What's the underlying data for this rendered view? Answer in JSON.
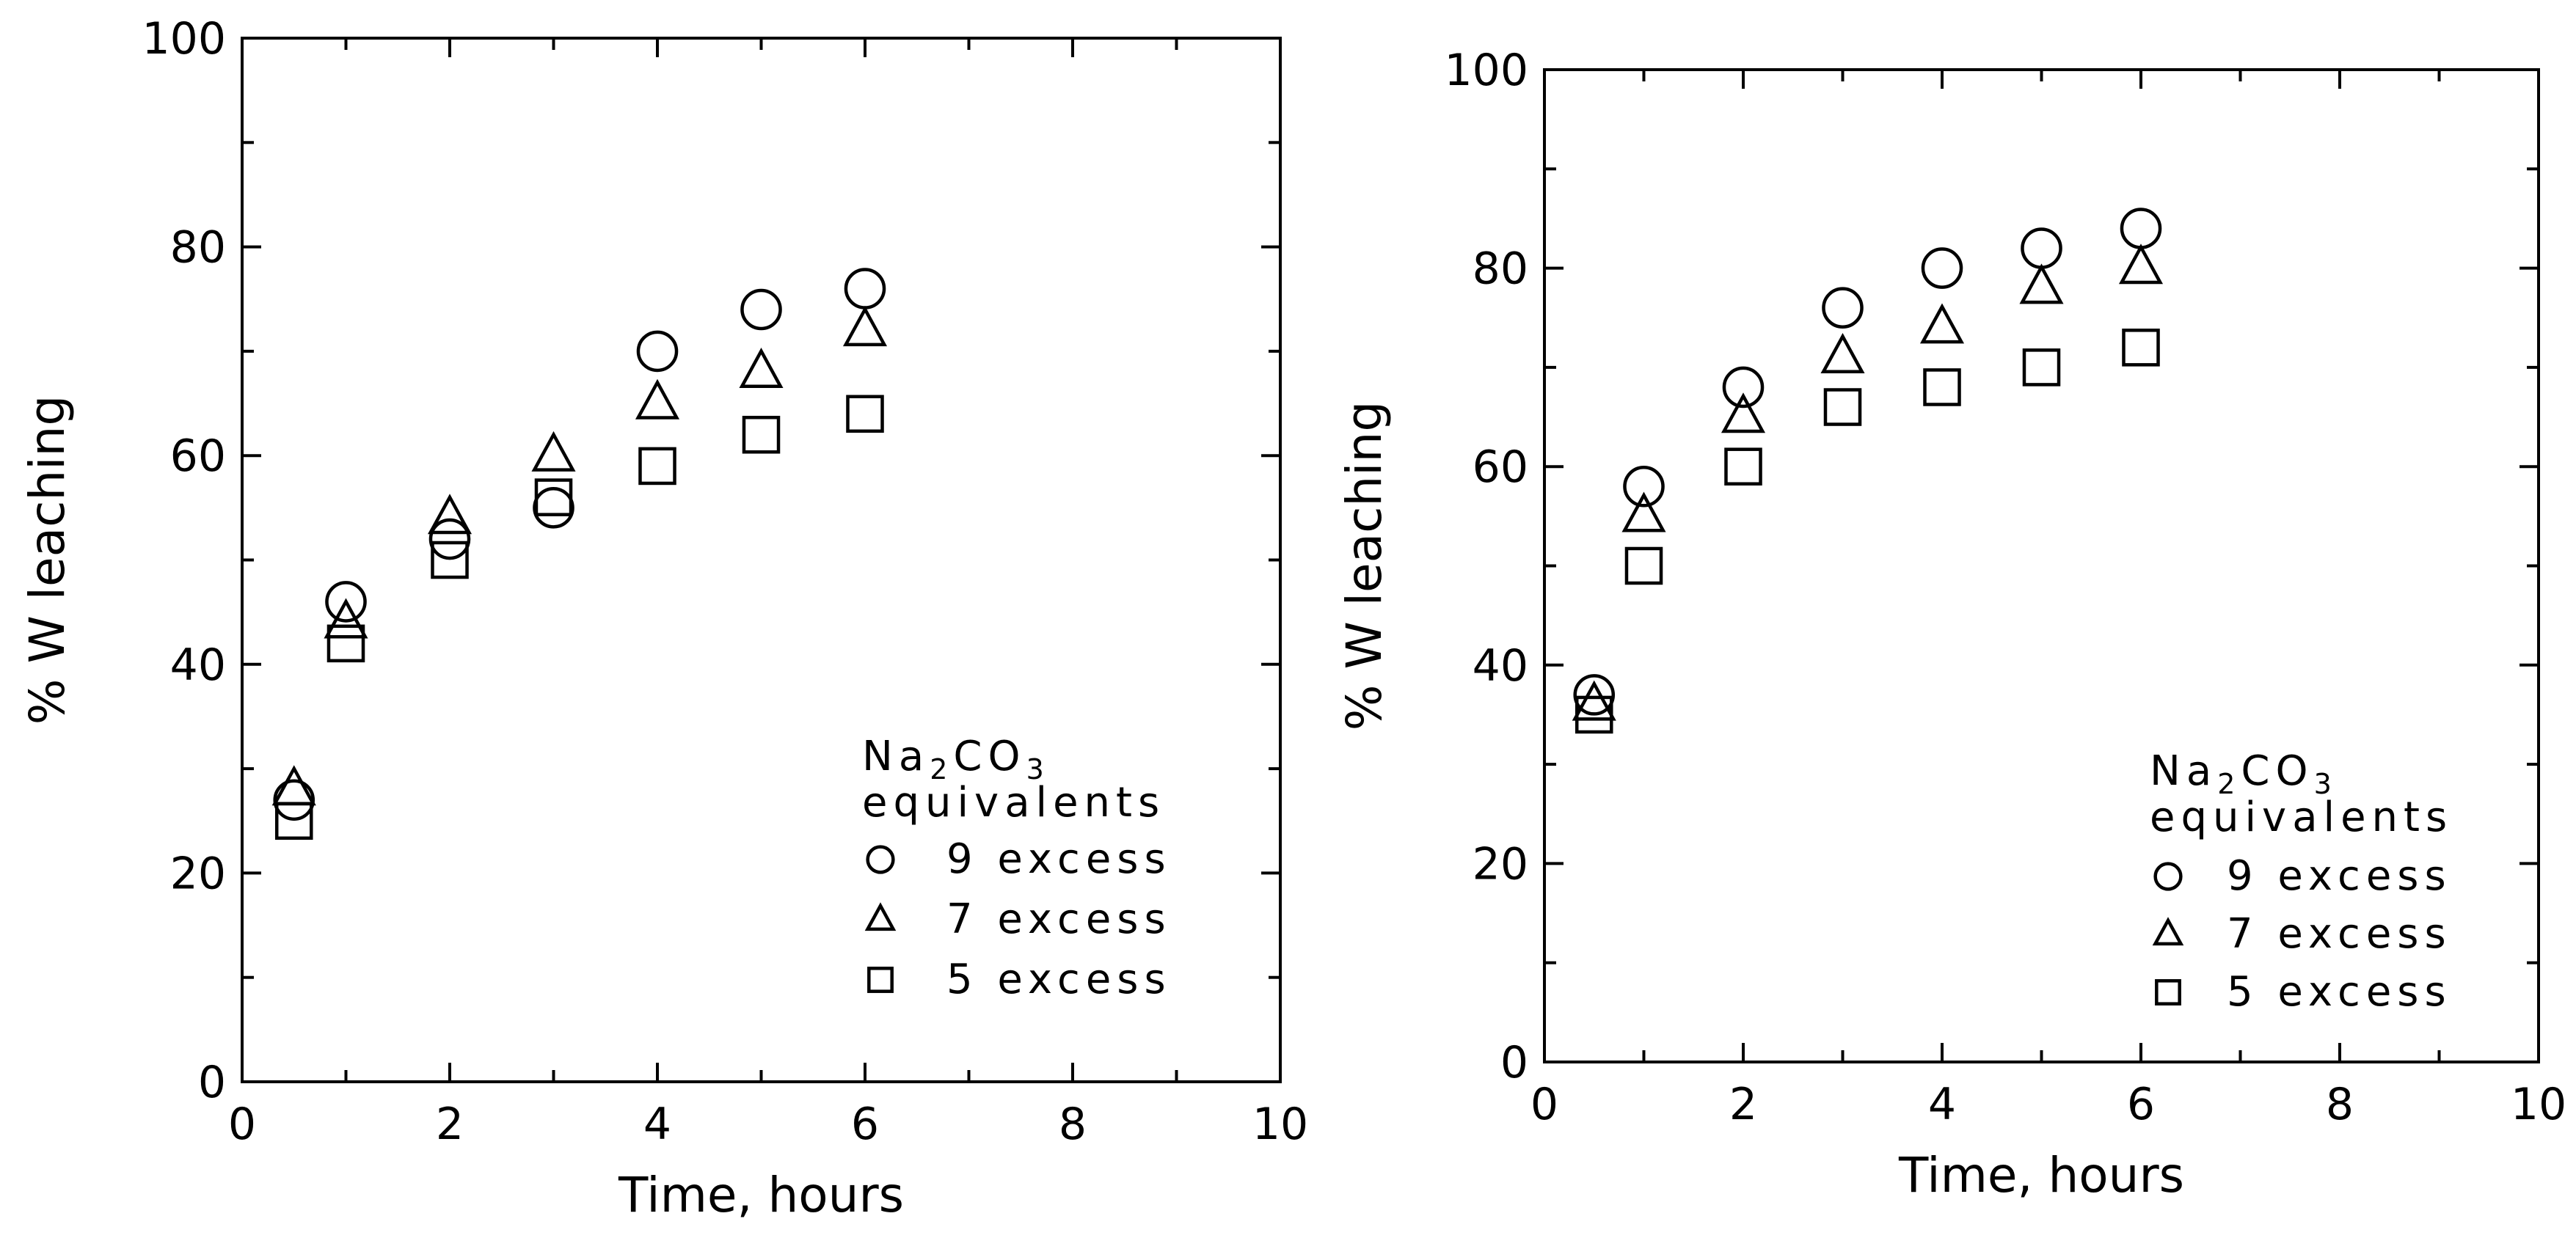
{
  "chart_data": [
    {
      "type": "scatter",
      "xlabel": "Time, hours",
      "ylabel": "% W leaching",
      "xlim": [
        0,
        10
      ],
      "ylim": [
        0,
        100
      ],
      "xticks": [
        "0",
        "2",
        "4",
        "6",
        "8",
        "10"
      ],
      "yticks": [
        "0",
        "20",
        "40",
        "60",
        "80",
        "100"
      ],
      "grid": false,
      "legend_position": "bottom-right",
      "legend_title_main": "Na",
      "legend_title_sub1": "2",
      "legend_title_mid": "CO",
      "legend_title_sub2": "3",
      "legend_title_line2": "equivalents",
      "series": [
        {
          "name": "9 excess",
          "marker": "circle",
          "x": [
            0.5,
            1,
            2,
            3,
            4,
            5,
            6
          ],
          "y": [
            27,
            46,
            52,
            55,
            70,
            74,
            76
          ]
        },
        {
          "name": "7 excess",
          "marker": "triangle",
          "x": [
            0.5,
            1,
            2,
            3,
            4,
            5,
            6
          ],
          "y": [
            28,
            44,
            54,
            60,
            65,
            68,
            72
          ]
        },
        {
          "name": "5 excess",
          "marker": "square",
          "x": [
            0.5,
            1,
            2,
            3,
            4,
            5,
            6
          ],
          "y": [
            25,
            42,
            50,
            56,
            59,
            62,
            64
          ]
        }
      ]
    },
    {
      "type": "scatter",
      "xlabel": "Time, hours",
      "ylabel": "% W leaching",
      "xlim": [
        0,
        10
      ],
      "ylim": [
        0,
        100
      ],
      "xticks": [
        "0",
        "2",
        "4",
        "6",
        "8",
        "10"
      ],
      "yticks": [
        "0",
        "20",
        "40",
        "60",
        "80",
        "100"
      ],
      "grid": false,
      "legend_position": "bottom-right",
      "legend_title_main": "Na",
      "legend_title_sub1": "2",
      "legend_title_mid": "CO",
      "legend_title_sub2": "3",
      "legend_title_line2": "equivalents",
      "series": [
        {
          "name": "9 excess",
          "marker": "circle",
          "x": [
            0.5,
            1,
            2,
            3,
            4,
            5,
            6
          ],
          "y": [
            37,
            58,
            68,
            76,
            80,
            82,
            84
          ]
        },
        {
          "name": "7 excess",
          "marker": "triangle",
          "x": [
            0.5,
            1,
            2,
            3,
            4,
            5,
            6
          ],
          "y": [
            36,
            55,
            65,
            71,
            74,
            78,
            80
          ]
        },
        {
          "name": "5 excess",
          "marker": "square",
          "x": [
            0.5,
            1,
            2,
            3,
            4,
            5,
            6
          ],
          "y": [
            35,
            50,
            60,
            66,
            68,
            70,
            72
          ]
        }
      ]
    }
  ]
}
